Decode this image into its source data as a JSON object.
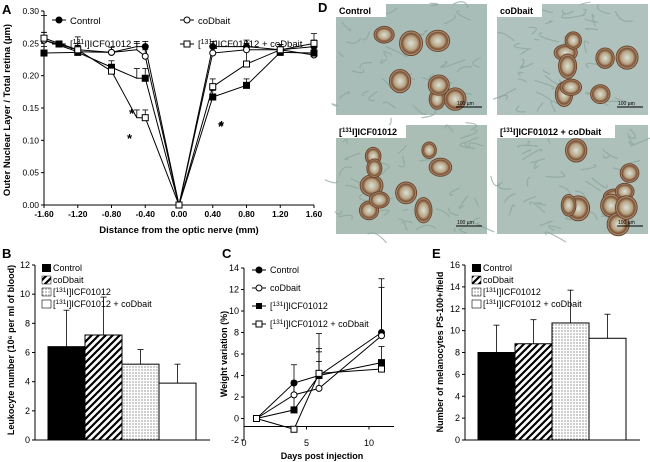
{
  "chart_data": [
    {
      "panel": "A",
      "type": "line",
      "xlabel": "Distance from the optic nerve (mm)",
      "ylabel": "Outer Nuclear Layer / Total retina (µm)",
      "x": [
        -1.6,
        -1.2,
        -0.8,
        -0.4,
        0,
        0.4,
        0.8,
        1.2,
        1.6
      ],
      "xticks": [
        "-1.60",
        "-1.20",
        "-0.80",
        "-0.40",
        "0.00",
        "0.40",
        "0.80",
        "1.20",
        "1.60"
      ],
      "yticks": [
        "0.00",
        "0.05",
        "0.10",
        "0.15",
        "0.20",
        "0.25",
        "0.30"
      ],
      "xlim": [
        -1.6,
        1.6
      ],
      "ylim": [
        0,
        0.3
      ],
      "series": [
        {
          "name": "Control",
          "marker": "circle",
          "fill": "#000000",
          "x": [
            -1.6,
            -1.2,
            -0.8,
            -0.5,
            -0.4,
            0,
            0.4,
            0.8,
            1.2,
            1.6
          ],
          "values": [
            0.255,
            0.237,
            0.236,
            0.245,
            0.245,
            0,
            0.245,
            0.245,
            0.24,
            0.245
          ],
          "err": [
            0.012,
            0.01,
            0.008,
            0.008,
            0.008,
            0,
            0.008,
            0.01,
            0.008,
            0.01
          ]
        },
        {
          "name": "coDbait",
          "marker": "circle",
          "fill": "#ffffff",
          "x": [
            -1.6,
            -1.2,
            -0.8,
            -0.5,
            -0.4,
            0,
            0.4,
            0.8,
            1.2,
            1.6
          ],
          "values": [
            0.255,
            0.24,
            0.236,
            0.24,
            0.23,
            0,
            0.235,
            0.24,
            0.24,
            0.232
          ],
          "err": [
            0.012,
            0.01,
            0.008,
            0.01,
            0.01,
            0,
            0.012,
            0.01,
            0.008,
            0.008
          ]
        },
        {
          "name": "[131I]ICF01012",
          "marker": "square",
          "fill": "#000000",
          "x": [
            -1.6,
            -1.2,
            -0.8,
            -0.5,
            -0.4,
            0,
            0.4,
            0.8,
            1.2,
            1.6
          ],
          "values": [
            0.235,
            0.236,
            0.213,
            0.196,
            0.196,
            0,
            0.167,
            0.185,
            0.236,
            0.235
          ],
          "err": [
            0.01,
            0.01,
            0.01,
            0.015,
            0.015,
            0,
            0.01,
            0.01,
            0.008,
            0.01
          ]
        },
        {
          "name": "[131I]ICF01012 + coDbait",
          "marker": "square",
          "fill": "#ffffff",
          "x": [
            -1.6,
            -1.2,
            -0.8,
            -0.5,
            -0.4,
            0,
            0.4,
            0.8,
            1.2,
            1.6
          ],
          "values": [
            0.258,
            0.24,
            0.207,
            0.135,
            0.135,
            0,
            0.183,
            0.218,
            0.24,
            0.25
          ],
          "err": [
            0.035,
            0.02,
            0.01,
            0.012,
            0.012,
            0,
            0.012,
            0.025,
            0.008,
            0.015
          ]
        }
      ],
      "annotations": [
        "*",
        "*",
        "*",
        "*"
      ]
    },
    {
      "panel": "B",
      "type": "bar",
      "ylabel": "Leukocyte number (10⁶ per ml of blood)",
      "yticks": [
        "0",
        "2",
        "4",
        "6",
        "8",
        "10",
        "12"
      ],
      "ylim": [
        0,
        12
      ],
      "categories": [
        "Control",
        "coDbait",
        "[131I]ICF01012",
        "[131I]ICF01012 + coDbait"
      ],
      "values": [
        6.4,
        7.2,
        5.2,
        3.9
      ],
      "err": [
        2.5,
        2.6,
        1.0,
        1.3
      ],
      "patterns": [
        "solid",
        "diagonal",
        "dots",
        "empty"
      ]
    },
    {
      "panel": "C",
      "type": "line",
      "xlabel": "Days post injection",
      "ylabel": "Weight variation (%)",
      "xticks": [
        "0",
        "5",
        "10"
      ],
      "yticks": [
        "-2",
        "0",
        "2",
        "4",
        "6",
        "8",
        "10",
        "12",
        "14"
      ],
      "xlim": [
        0,
        12
      ],
      "ylim": [
        -2,
        14
      ],
      "series": [
        {
          "name": "Control",
          "marker": "circle",
          "fill": "#000000",
          "x": [
            1,
            4,
            6,
            11
          ],
          "values": [
            0,
            3.3,
            4,
            8
          ],
          "err": [
            0,
            1.7,
            2.5,
            5
          ]
        },
        {
          "name": "coDbait",
          "marker": "circle",
          "fill": "#ffffff",
          "x": [
            1,
            4,
            6,
            11
          ],
          "values": [
            0,
            2.2,
            2.8,
            7.7
          ],
          "err": [
            0,
            1.3,
            2.5,
            4.5
          ]
        },
        {
          "name": "[131I]ICF01012",
          "marker": "square",
          "fill": "#000000",
          "x": [
            1,
            4,
            6,
            11
          ],
          "values": [
            0,
            0.8,
            4,
            5.2
          ],
          "err": [
            0,
            2.5,
            2.2,
            1.5
          ]
        },
        {
          "name": "[131I]ICF01012 + coDbait",
          "marker": "square",
          "fill": "#ffffff",
          "x": [
            1,
            4,
            6,
            11
          ],
          "values": [
            0,
            -1,
            4.2,
            4.6
          ],
          "err": [
            0,
            0,
            3.7,
            0
          ]
        }
      ]
    },
    {
      "panel": "E",
      "type": "bar",
      "ylabel": "Number of melanocytes PS-100+/field",
      "yticks": [
        "0",
        "2",
        "4",
        "6",
        "8",
        "10",
        "12",
        "14",
        "16"
      ],
      "ylim": [
        0,
        16
      ],
      "categories": [
        "Control",
        "coDbait",
        "[131I]ICF01012",
        "[131I]ICF01012 + coDbait"
      ],
      "values": [
        8.0,
        8.8,
        10.7,
        9.3
      ],
      "err": [
        2.5,
        2.2,
        3.0,
        2.2
      ],
      "patterns": [
        "solid",
        "diagonal",
        "dots",
        "empty"
      ]
    }
  ],
  "figure": {
    "panel_labels": {
      "A": "A",
      "B": "B",
      "C": "C",
      "D": "D",
      "E": "E"
    },
    "iso": "131",
    "legends": {
      "A": [
        "Control",
        "coDbait",
        "ICF01012",
        "ICF01012 + coDbait"
      ],
      "BE": [
        "Control",
        "coDbait",
        "ICF01012",
        "ICF01012 + coDbait"
      ],
      "C": [
        "Control",
        "coDbait",
        "ICF01012",
        "ICF01012 + coDbait"
      ]
    },
    "micrographs": [
      {
        "label": "Control",
        "scale": "100 µm"
      },
      {
        "label": "coDbait",
        "scale": "100 µm"
      },
      {
        "label": "ICF01012",
        "scale": "100 µm"
      },
      {
        "label": "ICF01012 + coDbait",
        "scale": "100 µm"
      }
    ]
  }
}
